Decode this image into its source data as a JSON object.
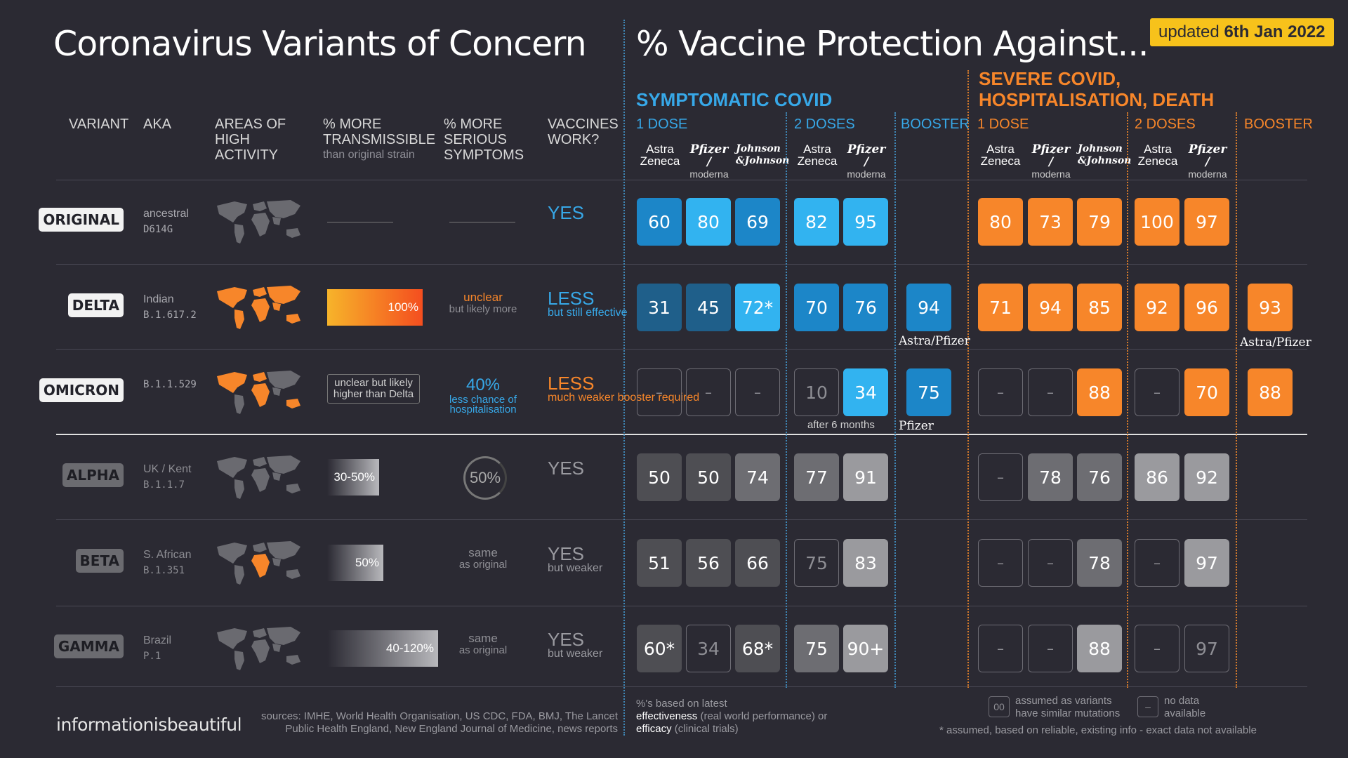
{
  "header": {
    "title_left": "Coronavirus Variants of Concern",
    "title_right": "% Vaccine Protection Against...",
    "updated_prefix": "updated",
    "updated_date": "6th Jan 2022"
  },
  "columns": {
    "variant": "VARIANT",
    "aka": "AKA",
    "areas": "AREAS OF HIGH ACTIVITY",
    "transmissible": "% MORE TRANSMISSIBLE",
    "transmissible_sub": "than original strain",
    "serious": "% MORE SERIOUS SYMPTOMS",
    "vaccines": "VACCINES WORK?"
  },
  "sections": {
    "symptomatic": "SYMPTOMATIC COVID",
    "severe_line1": "SEVERE COVID,",
    "severe_line2": "HOSPITALISATION, DEATH",
    "one_dose": "1 DOSE",
    "two_doses": "2 DOSES",
    "booster": "BOOSTER"
  },
  "brands": {
    "astra1": "Astra",
    "astra2": "Zeneca",
    "pfizer": "Pfizer",
    "moderna": "moderna",
    "jj1": "Johnson",
    "jj2": "&Johnson"
  },
  "colors": {
    "background": "#2b2a33",
    "blue_dark": "#1f5f8a",
    "blue_mid": "#1c86c8",
    "blue_light": "#32b3f0",
    "orange": "#f7862a",
    "grey_dark": "#4e4e53",
    "grey_mid": "#6d6d72",
    "grey_light": "#9a9a9e"
  },
  "chart_data": {
    "type": "table",
    "title": "% Vaccine Protection Against...",
    "column_groups": [
      "SYMPTOMATIC COVID",
      "SEVERE COVID, HOSPITALISATION, DEATH"
    ],
    "rows": [
      {
        "variant": "ORIGINAL",
        "aka1": "ancestral",
        "aka2": "D614G",
        "transmissible": "",
        "transmissible_level": 0,
        "serious_main": "",
        "serious_sub": "",
        "works_main": "YES",
        "works_sub": "",
        "works_color": "blue",
        "sym": [
          {
            "v": "60",
            "c": "blue_mid"
          },
          {
            "v": "80",
            "c": "blue_light"
          },
          {
            "v": "69",
            "c": "blue_mid"
          },
          {
            "v": "82",
            "c": "blue_light"
          },
          {
            "v": "95",
            "c": "blue_light"
          },
          null
        ],
        "sev": [
          {
            "v": "80",
            "c": "orange"
          },
          {
            "v": "73",
            "c": "orange"
          },
          {
            "v": "79",
            "c": "orange"
          },
          {
            "v": "100",
            "c": "orange"
          },
          {
            "v": "97",
            "c": "orange"
          },
          null
        ]
      },
      {
        "variant": "DELTA",
        "aka1": "Indian",
        "aka2": "B.1.617.2",
        "transmissible": "100%",
        "transmissible_level": 1.0,
        "serious_main": "unclear",
        "serious_sub": "but likely more",
        "works_main": "LESS",
        "works_sub": "but still effective",
        "works_color": "blue",
        "sym": [
          {
            "v": "31",
            "c": "blue_dark"
          },
          {
            "v": "45",
            "c": "blue_dark"
          },
          {
            "v": "72*",
            "c": "blue_light"
          },
          {
            "v": "70",
            "c": "blue_mid"
          },
          {
            "v": "76",
            "c": "blue_mid"
          },
          {
            "v": "94",
            "c": "blue_mid"
          }
        ],
        "sev": [
          {
            "v": "71",
            "c": "orange"
          },
          {
            "v": "94",
            "c": "orange"
          },
          {
            "v": "85",
            "c": "orange"
          },
          {
            "v": "92",
            "c": "orange"
          },
          {
            "v": "96",
            "c": "orange"
          },
          {
            "v": "93",
            "c": "orange"
          }
        ],
        "booster_note": "Astra/Pfizer"
      },
      {
        "variant": "OMICRON",
        "aka1": "",
        "aka2": "B.1.1.529",
        "transmissible": "unclear but likely higher than Delta",
        "transmissible_level": 0,
        "serious_main": "40%",
        "serious_sub": "less chance of hospitalisation",
        "works_main": "LESS",
        "works_sub": "much weaker booster required",
        "works_color": "orange",
        "sym": [
          {
            "v": "–",
            "c": "empty"
          },
          {
            "v": "–",
            "c": "empty"
          },
          {
            "v": "–",
            "c": "empty"
          },
          {
            "v": "10",
            "c": "empty"
          },
          {
            "v": "34",
            "c": "blue_light"
          },
          {
            "v": "75",
            "c": "blue_mid"
          }
        ],
        "sev": [
          {
            "v": "–",
            "c": "empty"
          },
          {
            "v": "–",
            "c": "empty"
          },
          {
            "v": "88",
            "c": "orange"
          },
          {
            "v": "–",
            "c": "empty"
          },
          {
            "v": "70",
            "c": "orange"
          },
          {
            "v": "88",
            "c": "orange"
          }
        ],
        "dose2_note": "after 6 months",
        "booster_note": "Pfizer"
      },
      {
        "variant": "ALPHA",
        "aka1": "UK / Kent",
        "aka2": "B.1.1.7",
        "transmissible": "30-50%",
        "transmissible_level": 0.45,
        "serious_main": "50%",
        "serious_sub": "",
        "works_main": "YES",
        "works_sub": "",
        "works_color": "grey",
        "sym": [
          {
            "v": "50",
            "c": "grey_dark"
          },
          {
            "v": "50",
            "c": "grey_dark"
          },
          {
            "v": "74",
            "c": "grey_mid"
          },
          {
            "v": "77",
            "c": "grey_mid"
          },
          {
            "v": "91",
            "c": "grey_light"
          },
          null
        ],
        "sev": [
          {
            "v": "–",
            "c": "empty"
          },
          {
            "v": "78",
            "c": "grey_mid"
          },
          {
            "v": "76",
            "c": "grey_mid"
          },
          {
            "v": "86",
            "c": "grey_light"
          },
          {
            "v": "92",
            "c": "grey_light"
          },
          null
        ]
      },
      {
        "variant": "BETA",
        "aka1": "S. African",
        "aka2": "B.1.351",
        "transmissible": "50%",
        "transmissible_level": 0.5,
        "serious_main": "same",
        "serious_sub": "as original",
        "works_main": "YES",
        "works_sub": "but weaker",
        "works_color": "grey",
        "sym": [
          {
            "v": "51",
            "c": "grey_dark"
          },
          {
            "v": "56",
            "c": "grey_dark"
          },
          {
            "v": "66",
            "c": "grey_dark"
          },
          {
            "v": "75",
            "c": "empty"
          },
          {
            "v": "83",
            "c": "grey_light"
          },
          null
        ],
        "sev": [
          {
            "v": "–",
            "c": "empty"
          },
          {
            "v": "–",
            "c": "empty"
          },
          {
            "v": "78",
            "c": "grey_mid"
          },
          {
            "v": "–",
            "c": "empty"
          },
          {
            "v": "97",
            "c": "grey_light"
          },
          null
        ]
      },
      {
        "variant": "GAMMA",
        "aka1": "Brazil",
        "aka2": "P.1",
        "transmissible": "40-120%",
        "transmissible_level": 1.2,
        "serious_main": "same",
        "serious_sub": "as original",
        "works_main": "YES",
        "works_sub": "but weaker",
        "works_color": "grey",
        "sym": [
          {
            "v": "60*",
            "c": "grey_dark"
          },
          {
            "v": "34",
            "c": "empty"
          },
          {
            "v": "68*",
            "c": "grey_dark"
          },
          {
            "v": "75",
            "c": "grey_mid"
          },
          {
            "v": "90+",
            "c": "grey_light"
          },
          null
        ],
        "sev": [
          {
            "v": "–",
            "c": "empty"
          },
          {
            "v": "–",
            "c": "empty"
          },
          {
            "v": "88",
            "c": "grey_light"
          },
          {
            "v": "–",
            "c": "empty"
          },
          {
            "v": "97",
            "c": "empty"
          },
          null
        ]
      }
    ]
  },
  "footer": {
    "brand": "informationisbeautiful",
    "sources1": "sources: IMHE, World Health Organisation, US CDC, FDA, BMJ, The Lancet",
    "sources2": "Public Health England, New England Journal of Medicine, news reports",
    "note1": "%'s based on latest",
    "note2a": "effectiveness",
    "note2b": " (real world performance) or",
    "note3a": "efficacy",
    "note3b": " (clinical trials)",
    "legend_box": "00",
    "legend_box_text": "assumed as variants have similar mutations",
    "legend_dash": "–",
    "legend_dash_text": "no data available",
    "asterisk_note": "* assumed,  based on reliable, existing info - exact data not available"
  }
}
